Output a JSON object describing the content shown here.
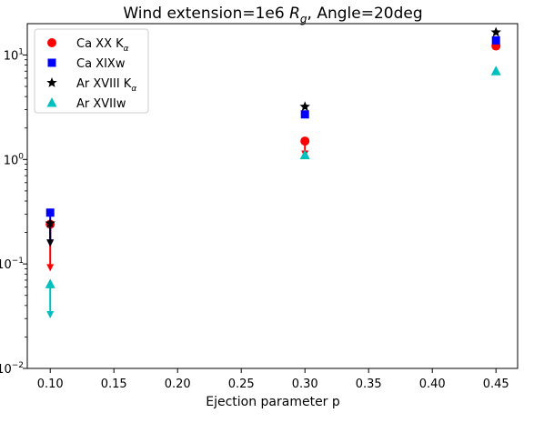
{
  "chart_data": {
    "type": "scatter",
    "title_prefix": "Wind extension=1e6 ",
    "title_symbol": "R",
    "title_subscript": "g",
    "title_suffix": ", Angle=20deg",
    "xlabel": "Ejection parameter p",
    "ylabel": "",
    "xlim": [
      0.082,
      0.467
    ],
    "ylim_log10": [
      -2,
      1.3
    ],
    "y_scale": "log",
    "grid": false,
    "legend_position": "top-left",
    "x_ticks": [
      0.1,
      0.15,
      0.2,
      0.25,
      0.3,
      0.35,
      0.4,
      0.45
    ],
    "x_tick_labels": [
      "0.10",
      "0.15",
      "0.20",
      "0.25",
      "0.30",
      "0.35",
      "0.40",
      "0.45"
    ],
    "y_ticks": [
      {
        "exp": 1,
        "label": "10",
        "sup": "1"
      },
      {
        "exp": 0,
        "label": "10",
        "sup": "0"
      },
      {
        "exp": -1,
        "label": "10",
        "sup": "−1"
      },
      {
        "exp": -2,
        "label": "10",
        "sup": "−2"
      }
    ],
    "series": [
      {
        "name_main": "Ca XX K",
        "name_sub": "α",
        "marker": "circle",
        "color": "#ff0000",
        "points": [
          {
            "x": 0.1,
            "y": 0.24,
            "lower": 0.09
          },
          {
            "x": 0.3,
            "y": 1.5,
            "lower": 1.1
          },
          {
            "x": 0.45,
            "y": 12.2,
            "lower": null
          }
        ]
      },
      {
        "name_main": "Ca XIXw",
        "name_sub": "",
        "marker": "square",
        "color": "#0000ff",
        "points": [
          {
            "x": 0.1,
            "y": 0.31,
            "lower": 0.155
          },
          {
            "x": 0.3,
            "y": 2.7,
            "lower": null
          },
          {
            "x": 0.45,
            "y": 13.8,
            "lower": null
          }
        ]
      },
      {
        "name_main": "Ar XVIII K",
        "name_sub": "α",
        "marker": "star",
        "color": "#000000",
        "points": [
          {
            "x": 0.1,
            "y": 0.245,
            "lower": 0.155
          },
          {
            "x": 0.3,
            "y": 3.2,
            "lower": null
          },
          {
            "x": 0.45,
            "y": 16.5,
            "lower": null
          }
        ]
      },
      {
        "name_main": "Ar XVIIw",
        "name_sub": "",
        "marker": "triangle",
        "color": "#00bfbf",
        "points": [
          {
            "x": 0.1,
            "y": 0.064,
            "lower": 0.032
          },
          {
            "x": 0.3,
            "y": 1.1,
            "lower": null
          },
          {
            "x": 0.45,
            "y": 7.0,
            "lower": null
          }
        ]
      }
    ]
  }
}
